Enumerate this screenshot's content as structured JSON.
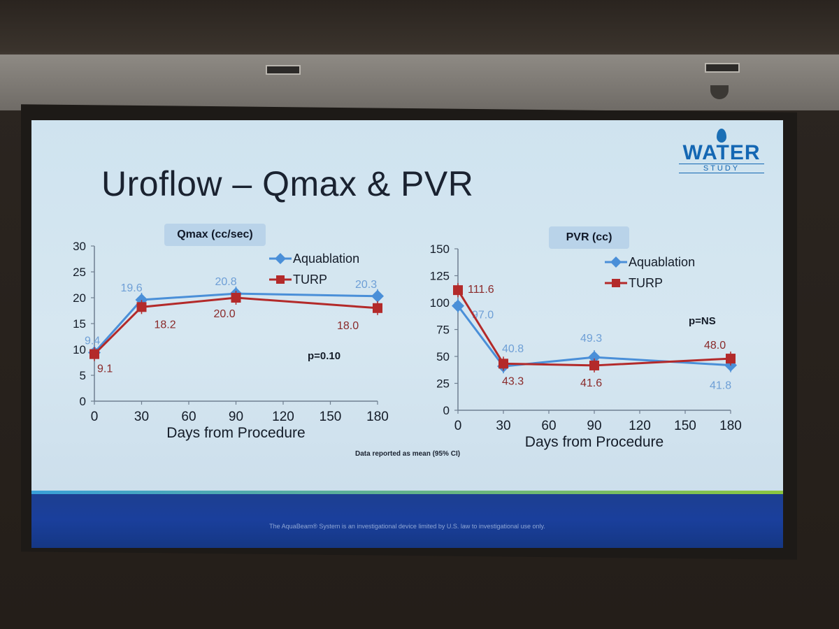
{
  "slide": {
    "title": "Uroflow – Qmax & PVR",
    "logo_main": "WATER",
    "logo_sub": "STUDY",
    "footnote": "Data reported as mean (95% CI)",
    "disclaimer": "The AquaBeam® System is an investigational device limited by U.S. law to investigational use only."
  },
  "colors": {
    "aquablation": "#4a8fd8",
    "turp": "#b32a2a"
  },
  "chart_data": [
    {
      "type": "line",
      "title": "Qmax (cc/sec)",
      "xlabel": "Days from Procedure",
      "ylabel": "",
      "x": [
        0,
        30,
        90,
        180
      ],
      "xticks": [
        0,
        30,
        60,
        90,
        120,
        150,
        180
      ],
      "yticks": [
        0,
        5,
        10,
        15,
        20,
        25,
        30
      ],
      "xlim": [
        0,
        180
      ],
      "ylim": [
        0,
        30
      ],
      "p_value": "p=0.10",
      "series": [
        {
          "name": "Aquablation",
          "values": [
            9.4,
            19.6,
            20.8,
            20.3
          ],
          "labels": [
            "9.4",
            "19.6",
            "20.8",
            "20.3"
          ]
        },
        {
          "name": "TURP",
          "values": [
            9.1,
            18.2,
            20.0,
            18.0
          ],
          "labels": [
            "9.1",
            "18.2",
            "20.0",
            "18.0"
          ]
        }
      ]
    },
    {
      "type": "line",
      "title": "PVR (cc)",
      "xlabel": "Days from Procedure",
      "ylabel": "",
      "x": [
        0,
        30,
        90,
        180
      ],
      "xticks": [
        0,
        30,
        60,
        90,
        120,
        150,
        180
      ],
      "yticks": [
        0,
        25,
        50,
        75,
        100,
        125,
        150
      ],
      "xlim": [
        0,
        180
      ],
      "ylim": [
        0,
        150
      ],
      "p_value": "p=NS",
      "series": [
        {
          "name": "Aquablation",
          "values": [
            97.0,
            40.8,
            49.3,
            41.8
          ],
          "labels": [
            "97.0",
            "40.8",
            "49.3",
            "41.8"
          ]
        },
        {
          "name": "TURP",
          "values": [
            111.6,
            43.3,
            41.6,
            48.0
          ],
          "labels": [
            "111.6",
            "43.3",
            "41.6",
            "48.0"
          ]
        }
      ]
    }
  ]
}
